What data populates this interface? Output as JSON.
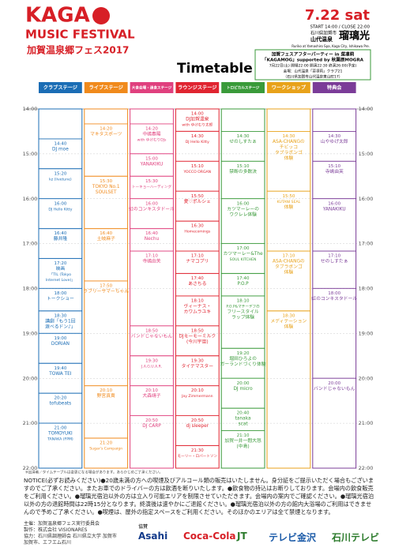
{
  "header": {
    "logo_main": "KAGA",
    "logo_sub": "MUSIC FESTIVAL",
    "logo_jp": "加賀温泉郷フェス2017",
    "date": "7.22 sat",
    "hours": "START 14:00 / CLOSE 22:00",
    "venue_pref": "石川県加賀市",
    "venue_area": "山代温泉",
    "venue_name": "瑠璃光",
    "venue_en": "Ruriko at Yamashiro Spa, Kaga City, Ishikawa Pre.",
    "after_party": [
      "加賀フェスアフターパーティー in 菜凛莉",
      "「KAGAMOG」supported by 秋葉原MOGRA",
      "7月22日(土) 開場22:00 開演22:30 終演26:00(予定)",
      "会場：山代温泉「菜凛莉」クラブ21",
      "（石川県加賀市山代温泉東山町17）"
    ],
    "title": "Timetable"
  },
  "times": [
    "14:00",
    "15:00",
    "16:00",
    "17:00",
    "18:00",
    "19:00",
    "20:00",
    "21:00",
    "22:00"
  ],
  "columns": [
    {
      "name": "クラブステージ",
      "color": "#1b6db5",
      "events": [
        {
          "time": "14:40",
          "lines": [
            "DJ moe"
          ]
        },
        {
          "time": "15:20",
          "lines": [
            "kz (livetune)"
          ]
        },
        {
          "time": "16:00",
          "lines": [
            "DJ Hello Kitty"
          ]
        },
        {
          "time": "16:40",
          "lines": [
            "藤井隆"
          ]
        },
        {
          "time": "17:20",
          "lines": [
            "映画",
            "「TIL (Tokyo",
            "Internet Love)」"
          ]
        },
        {
          "time": "18:00",
          "lines": [
            "トークショー"
          ]
        },
        {
          "time": "18:30",
          "lines": [
            "講劇「もう1回",
            "遊べるドン♪」"
          ]
        },
        {
          "time": "19:00",
          "lines": [
            "DORIAN"
          ]
        },
        {
          "time": "19:40",
          "lines": [
            "TOWA TEI"
          ]
        },
        {
          "time": "20:20",
          "lines": [
            "tofubeats"
          ]
        },
        {
          "time": "21:00",
          "lines": [
            "TOMOYUKI",
            "TANAKA (FPM)"
          ]
        }
      ]
    },
    {
      "name": "ライブステージ",
      "color": "#f08a1c",
      "events": [
        {
          "time": "14:20",
          "lines": [
            "マキタスポーツ"
          ]
        },
        {
          "time": "15:30",
          "lines": [
            "TOKYO No.1",
            "SOULSET"
          ]
        },
        {
          "time": "16:40",
          "lines": [
            "土岐麻子"
          ]
        },
        {
          "time": "17:50",
          "lines": [
            "ラブリーサマーちゃん"
          ]
        },
        {
          "time": "20:10",
          "lines": [
            "野宮真貴"
          ]
        },
        {
          "time": "21:20",
          "lines": [
            "Sugar's Campaign"
          ]
        }
      ]
    },
    {
      "name": "大食会場・過食ステージ",
      "color": "#e0407e",
      "events": [
        {
          "time": "14:20",
          "lines": [
            "中嶋春陽",
            "with ゆけむりDJs"
          ]
        },
        {
          "time": "15:00",
          "lines": [
            "YANAKIKU"
          ]
        },
        {
          "time": "15:30",
          "lines": [
            "トーキョーハーディング"
          ]
        },
        {
          "time": "16:00",
          "lines": [
            "虹のコンキスタドール"
          ]
        },
        {
          "time": "16:40",
          "lines": [
            "Nechu"
          ]
        },
        {
          "time": "17:10",
          "lines": [
            "寺嶋由芙"
          ]
        },
        {
          "time": "18:50",
          "lines": [
            "バンドじゃないもん"
          ]
        },
        {
          "time": "19:30",
          "lines": [
            "J.A.G.U.A.R."
          ]
        },
        {
          "time": "20:10",
          "lines": [
            "大森靖子"
          ]
        },
        {
          "time": "20:50",
          "lines": [
            "DJ CARP"
          ]
        }
      ]
    },
    {
      "name": "ラウンジステージ",
      "color": "#e02430",
      "events": [
        {
          "time": "14:00",
          "lines": [
            "DJ加賀温泉",
            "with ゆけむり太郎"
          ]
        },
        {
          "time": "14:30",
          "lines": [
            "DJ Hello Kitty"
          ]
        },
        {
          "time": "15:10",
          "lines": [
            "YOCCO ORGAN"
          ]
        },
        {
          "time": "15:50",
          "lines": [
            "愛♡ポルシェ"
          ]
        },
        {
          "time": "16:30",
          "lines": [
            "Homecomings"
          ]
        },
        {
          "time": "17:10",
          "lines": [
            "ナマコプリ"
          ]
        },
        {
          "time": "17:40",
          "lines": [
            "あさちる"
          ]
        },
        {
          "time": "18:10",
          "lines": [
            "ヴィーナス・",
            "カワムラユキ"
          ]
        },
        {
          "time": "18:50",
          "lines": [
            "DJモーモーミルク",
            "(今川宇宙)"
          ]
        },
        {
          "time": "19:30",
          "lines": [
            "タイテマスター"
          ]
        },
        {
          "time": "20:10",
          "lines": [
            "Jay Zimmermann"
          ]
        },
        {
          "time": "20:50",
          "lines": [
            "dj sleeper"
          ]
        },
        {
          "time": "21:30",
          "lines": [
            "モーリー・ロバートソン"
          ]
        }
      ]
    },
    {
      "name": "トロピカルステージ",
      "color": "#3a9a3a",
      "events": [
        {
          "time": "14:30",
          "lines": [
            "せのしすたぁ"
          ]
        },
        {
          "time": "15:10",
          "lines": [
            "禁断の多数決"
          ]
        },
        {
          "time": "16:00",
          "lines": [
            "カツマーレーの",
            "ウクレレ体験"
          ]
        },
        {
          "time": "17:00",
          "lines": [
            "カツマーレー&The",
            "SOUL KITCHEN"
          ]
        },
        {
          "time": "17:40",
          "lines": [
            "P.O.P"
          ]
        },
        {
          "time": "18:10",
          "lines": [
            "P.O.P&マチーデフの",
            "フリースタイル",
            "ラップ体験"
          ]
        },
        {
          "time": "19:20",
          "lines": [
            "堀田ひろよの",
            "ガーランドづくり体験"
          ]
        },
        {
          "time": "20:00",
          "lines": [
            "DJ micro"
          ]
        },
        {
          "time": "20:40",
          "lines": [
            "tanaka",
            "scat"
          ]
        },
        {
          "time": "21:10",
          "lines": [
            "加賀一井一悶大怒",
            "(中島)"
          ]
        }
      ]
    },
    {
      "name": "ワークショップ",
      "color": "#e8a21a",
      "events": [
        {
          "time": "14:30",
          "lines": [
            "ASA-CHANGの",
            "チビッコ",
            "タブラボンゴ",
            "体験"
          ]
        },
        {
          "time": "15:50",
          "lines": [
            "KUTANI SEAL",
            "体験"
          ]
        },
        {
          "time": "17:10",
          "lines": [
            "ASA-CHANGの",
            "タブラボンゴ",
            "体験"
          ]
        },
        {
          "time": "18:30",
          "lines": [
            "メディテーション",
            "体験"
          ]
        }
      ]
    },
    {
      "name": "特典会",
      "color": "#7b3c98",
      "events": [
        {
          "time": "14:30",
          "lines": [
            "山やゆげ太郎"
          ]
        },
        {
          "time": "15:10",
          "lines": [
            "寺嶋由芙"
          ]
        },
        {
          "time": "16:00",
          "lines": [
            "YANAKIKU"
          ]
        },
        {
          "time": "17:10",
          "lines": [
            "せのしすたぁ"
          ]
        },
        {
          "time": "18:00",
          "lines": [
            "虹のコンキスタドール"
          ]
        },
        {
          "time": "20:00",
          "lines": [
            "バンドじゃないもん"
          ]
        }
      ]
    }
  ],
  "small_note": "※出演者／タイムテーブルは変更になる場合があります。あらかじめご了承ください。",
  "notes": "NOTICE(必ずお読みください)●20歳未満の方への喫煙及びアルコール類の販売はいたしません。身分証をご提示いただく場合もございますのでご了承ください。またお車でのドライバーの方は飲酒を断りいたします。●飲食物の持込はお断りしております。会場内の飲食販売をご利用ください。●瑠璃光宿泊以外の方は立入り可能エリアを制限させていただきます。会場内の案内でご確認ください。●瑠璃光宿泊以外の方の退館時間は22時15分となります。終演後は速やかにご退館ください。●瑠璃光宿泊以外の方の館内大浴場のご利用はできませんので予めご了承ください。●喫煙は、屋外の指定スペースをご利用ください。そのほかのエリアは全て禁煙となります。",
  "footer": {
    "organizer": "主催：加賀温泉郷フェス実行委員会",
    "produce": "製作：株式会社 VISIONARES",
    "support": "協力：石川県調理師会 石川県立大学 加賀市",
    "support2": "加賀市、エフエム石川",
    "cosponsor_label": "協賛",
    "sponsors": [
      "Asahi",
      "Coca-Cola",
      "JT",
      "テレビ金沢",
      "石川テレビ"
    ]
  }
}
